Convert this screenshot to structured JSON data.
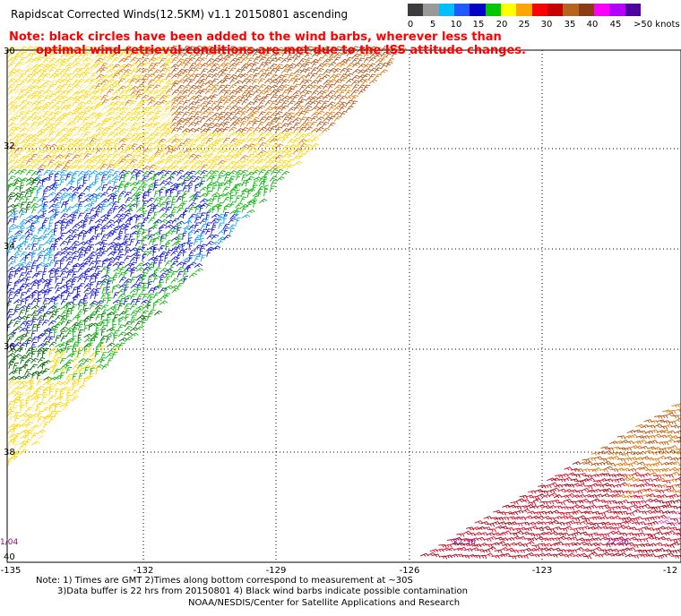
{
  "title": "Rapidscat Corrected Winds(12.5KM) v1.1 20150801 ascending",
  "note_lines": [
    "Note: black circles have been added to the wind barbs, wherever less than",
    "optimal wind retrieval conditions are met due to the ISS attitude changes."
  ],
  "legend": {
    "labels": [
      "0",
      "5",
      "10",
      "15",
      "20",
      "25",
      "30",
      "35",
      "40",
      "45",
      ">50 knots"
    ],
    "colors": [
      "#3c3c3c",
      "#999999",
      "#00bfff",
      "#1e5aff",
      "#0000c8",
      "#00c800",
      "#ffff00",
      "#ffa500",
      "#ff0000",
      "#c80000",
      "#b4641e",
      "#8c3c14",
      "#ff00ff",
      "#b400ff",
      "#5000a0"
    ]
  },
  "latitudes": [
    "30",
    "32",
    "34",
    "36",
    "38",
    "40"
  ],
  "longitudes": [
    "-135",
    "-132",
    "-129",
    "-126",
    "-123",
    "-12"
  ],
  "time_labels": [
    "1/04",
    "22:36",
    "22:36"
  ],
  "footnotes": [
    "Note: 1) Times are GMT 2)Times along bottom correspond to measurement at ~30S",
    "3)Data buffer is 22 hrs from 20150801 4) Black wind barbs indicate possible contamination",
    "NOAA/NESDIS/Center for Satellite Applications and Research"
  ]
}
